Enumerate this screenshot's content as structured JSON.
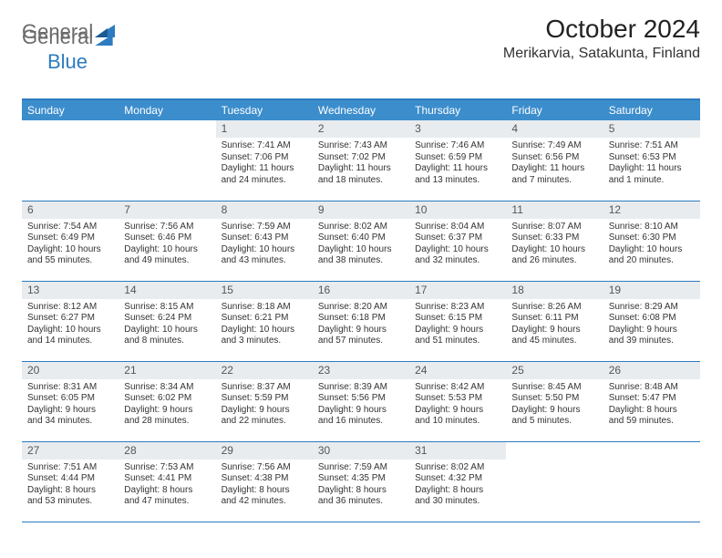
{
  "logo": {
    "part1": "General",
    "part2": "Blue"
  },
  "title": "October 2024",
  "location": "Merikarvia, Satakunta, Finland",
  "colors": {
    "header_bg": "#3c8dcc",
    "header_text": "#ffffff",
    "rule": "#2d7bc0",
    "daynum_bg": "#e9ecef",
    "logo_gray": "#6b6b6b",
    "logo_blue": "#2d7bc0"
  },
  "weekday_labels": [
    "Sunday",
    "Monday",
    "Tuesday",
    "Wednesday",
    "Thursday",
    "Friday",
    "Saturday"
  ],
  "layout": {
    "first_weekday_index": 2,
    "days_in_month": 31,
    "rows": 5,
    "cols": 7
  },
  "days": {
    "1": {
      "sunrise": "7:41 AM",
      "sunset": "7:06 PM",
      "daylight": "11 hours and 24 minutes."
    },
    "2": {
      "sunrise": "7:43 AM",
      "sunset": "7:02 PM",
      "daylight": "11 hours and 18 minutes."
    },
    "3": {
      "sunrise": "7:46 AM",
      "sunset": "6:59 PM",
      "daylight": "11 hours and 13 minutes."
    },
    "4": {
      "sunrise": "7:49 AM",
      "sunset": "6:56 PM",
      "daylight": "11 hours and 7 minutes."
    },
    "5": {
      "sunrise": "7:51 AM",
      "sunset": "6:53 PM",
      "daylight": "11 hours and 1 minute."
    },
    "6": {
      "sunrise": "7:54 AM",
      "sunset": "6:49 PM",
      "daylight": "10 hours and 55 minutes."
    },
    "7": {
      "sunrise": "7:56 AM",
      "sunset": "6:46 PM",
      "daylight": "10 hours and 49 minutes."
    },
    "8": {
      "sunrise": "7:59 AM",
      "sunset": "6:43 PM",
      "daylight": "10 hours and 43 minutes."
    },
    "9": {
      "sunrise": "8:02 AM",
      "sunset": "6:40 PM",
      "daylight": "10 hours and 38 minutes."
    },
    "10": {
      "sunrise": "8:04 AM",
      "sunset": "6:37 PM",
      "daylight": "10 hours and 32 minutes."
    },
    "11": {
      "sunrise": "8:07 AM",
      "sunset": "6:33 PM",
      "daylight": "10 hours and 26 minutes."
    },
    "12": {
      "sunrise": "8:10 AM",
      "sunset": "6:30 PM",
      "daylight": "10 hours and 20 minutes."
    },
    "13": {
      "sunrise": "8:12 AM",
      "sunset": "6:27 PM",
      "daylight": "10 hours and 14 minutes."
    },
    "14": {
      "sunrise": "8:15 AM",
      "sunset": "6:24 PM",
      "daylight": "10 hours and 8 minutes."
    },
    "15": {
      "sunrise": "8:18 AM",
      "sunset": "6:21 PM",
      "daylight": "10 hours and 3 minutes."
    },
    "16": {
      "sunrise": "8:20 AM",
      "sunset": "6:18 PM",
      "daylight": "9 hours and 57 minutes."
    },
    "17": {
      "sunrise": "8:23 AM",
      "sunset": "6:15 PM",
      "daylight": "9 hours and 51 minutes."
    },
    "18": {
      "sunrise": "8:26 AM",
      "sunset": "6:11 PM",
      "daylight": "9 hours and 45 minutes."
    },
    "19": {
      "sunrise": "8:29 AM",
      "sunset": "6:08 PM",
      "daylight": "9 hours and 39 minutes."
    },
    "20": {
      "sunrise": "8:31 AM",
      "sunset": "6:05 PM",
      "daylight": "9 hours and 34 minutes."
    },
    "21": {
      "sunrise": "8:34 AM",
      "sunset": "6:02 PM",
      "daylight": "9 hours and 28 minutes."
    },
    "22": {
      "sunrise": "8:37 AM",
      "sunset": "5:59 PM",
      "daylight": "9 hours and 22 minutes."
    },
    "23": {
      "sunrise": "8:39 AM",
      "sunset": "5:56 PM",
      "daylight": "9 hours and 16 minutes."
    },
    "24": {
      "sunrise": "8:42 AM",
      "sunset": "5:53 PM",
      "daylight": "9 hours and 10 minutes."
    },
    "25": {
      "sunrise": "8:45 AM",
      "sunset": "5:50 PM",
      "daylight": "9 hours and 5 minutes."
    },
    "26": {
      "sunrise": "8:48 AM",
      "sunset": "5:47 PM",
      "daylight": "8 hours and 59 minutes."
    },
    "27": {
      "sunrise": "7:51 AM",
      "sunset": "4:44 PM",
      "daylight": "8 hours and 53 minutes."
    },
    "28": {
      "sunrise": "7:53 AM",
      "sunset": "4:41 PM",
      "daylight": "8 hours and 47 minutes."
    },
    "29": {
      "sunrise": "7:56 AM",
      "sunset": "4:38 PM",
      "daylight": "8 hours and 42 minutes."
    },
    "30": {
      "sunrise": "7:59 AM",
      "sunset": "4:35 PM",
      "daylight": "8 hours and 36 minutes."
    },
    "31": {
      "sunrise": "8:02 AM",
      "sunset": "4:32 PM",
      "daylight": "8 hours and 30 minutes."
    }
  },
  "labels": {
    "sunrise_prefix": "Sunrise: ",
    "sunset_prefix": "Sunset: ",
    "daylight_prefix": "Daylight: "
  }
}
